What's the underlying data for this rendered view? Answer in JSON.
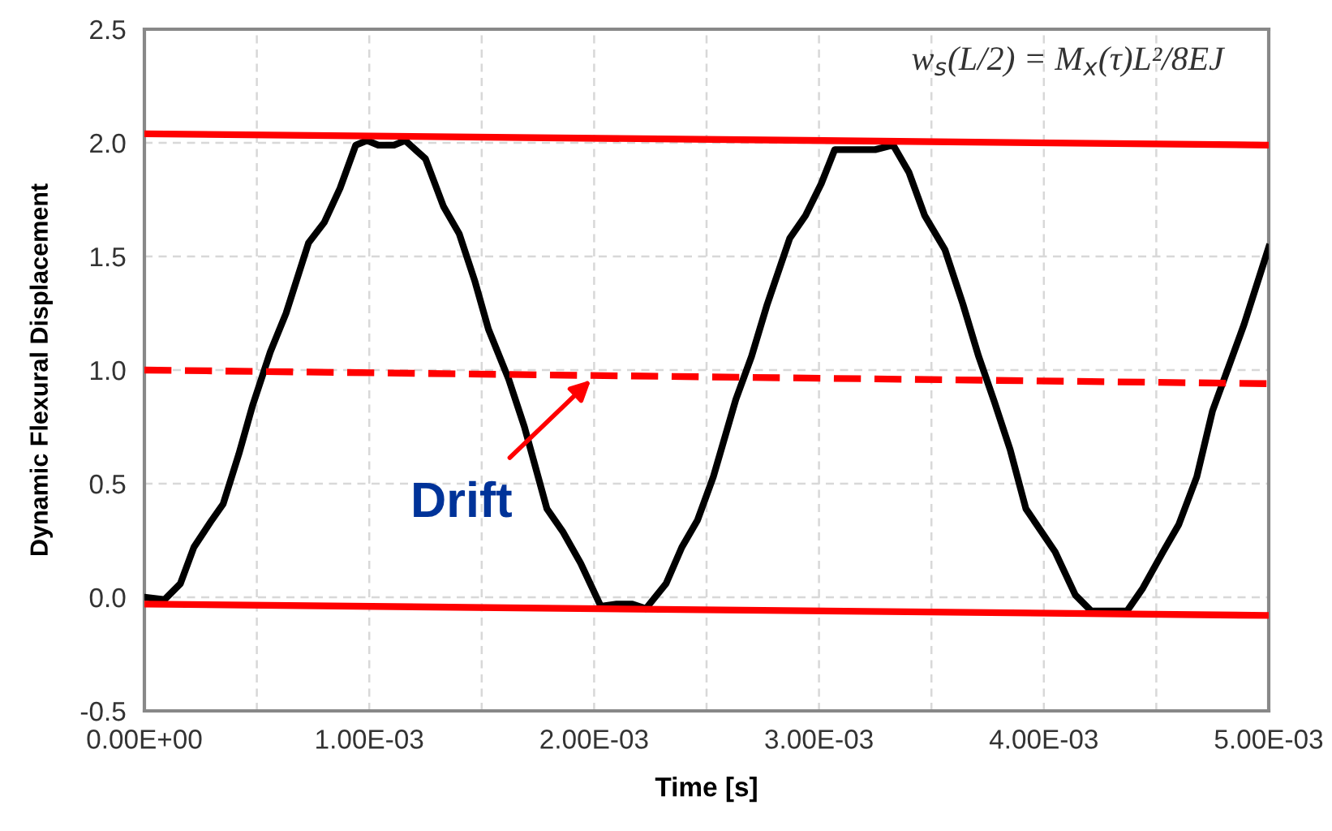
{
  "chart_data": {
    "type": "line",
    "xlabel": "Time [s]",
    "ylabel": "Dynamic Flexural Displacement",
    "xlim": [
      0,
      0.005
    ],
    "ylim": [
      -0.5,
      2.5
    ],
    "xticks": [
      {
        "value": 0,
        "label": "0.00E+00"
      },
      {
        "value": 0.0005,
        "label": null
      },
      {
        "value": 0.001,
        "label": "1.00E-03"
      },
      {
        "value": 0.0015,
        "label": null
      },
      {
        "value": 0.002,
        "label": "2.00E-03"
      },
      {
        "value": 0.0025,
        "label": null
      },
      {
        "value": 0.003,
        "label": "3.00E-03"
      },
      {
        "value": 0.0035,
        "label": null
      },
      {
        "value": 0.004,
        "label": "4.00E-03"
      },
      {
        "value": 0.0045,
        "label": null
      },
      {
        "value": 0.005,
        "label": "5.00E-03"
      }
    ],
    "yticks": [
      {
        "value": -0.5,
        "label": "-0.5"
      },
      {
        "value": 0.0,
        "label": "0.0"
      },
      {
        "value": 0.5,
        "label": "0.5"
      },
      {
        "value": 1.0,
        "label": "1.0"
      },
      {
        "value": 1.5,
        "label": "1.5"
      },
      {
        "value": 2.0,
        "label": "2.0"
      },
      {
        "value": 2.5,
        "label": "2.5"
      }
    ],
    "grid": true,
    "series": [
      {
        "color": "#000000",
        "line_style": "solid",
        "x": [
          0.0,
          9e-05,
          0.00016,
          0.00022,
          0.0003,
          0.00035,
          0.00042,
          0.00048,
          0.00056,
          0.00063,
          0.00073,
          0.0008,
          0.00087,
          0.00094,
          0.00099,
          0.00104,
          0.00111,
          0.00116,
          0.00125,
          0.00133,
          0.0014,
          0.00147,
          0.00153,
          0.00162,
          0.00169,
          0.00179,
          0.00186,
          0.00194,
          0.00203,
          0.0021,
          0.00217,
          0.00223,
          0.00232,
          0.00239,
          0.00246,
          0.00253,
          0.00263,
          0.0027,
          0.00277,
          0.00287,
          0.00294,
          0.00301,
          0.00307,
          0.00316,
          0.00325,
          0.00333,
          0.0034,
          0.00347,
          0.00356,
          0.00364,
          0.00371,
          0.00378,
          0.00385,
          0.00392,
          0.00405,
          0.00414,
          0.00421,
          0.00429,
          0.00437,
          0.00444,
          0.00453,
          0.0046,
          0.00468,
          0.00475,
          0.00482,
          0.00489,
          0.005
        ],
        "values": [
          0.0,
          -0.01,
          0.06,
          0.22,
          0.34,
          0.41,
          0.63,
          0.84,
          1.08,
          1.25,
          1.56,
          1.65,
          1.8,
          1.99,
          2.01,
          1.99,
          1.99,
          2.01,
          1.93,
          1.72,
          1.6,
          1.39,
          1.18,
          0.96,
          0.75,
          0.39,
          0.29,
          0.15,
          -0.04,
          -0.03,
          -0.03,
          -0.05,
          0.06,
          0.22,
          0.34,
          0.53,
          0.87,
          1.06,
          1.29,
          1.58,
          1.68,
          1.82,
          1.97,
          1.97,
          1.97,
          1.99,
          1.87,
          1.68,
          1.53,
          1.29,
          1.06,
          0.86,
          0.65,
          0.39,
          0.2,
          0.01,
          -0.06,
          -0.06,
          -0.06,
          0.04,
          0.2,
          0.32,
          0.53,
          0.82,
          1.01,
          1.2,
          1.54
        ]
      },
      {
        "color": "#ff0000",
        "line_style": "solid",
        "x": [
          0,
          0.005
        ],
        "values": [
          2.04,
          1.99
        ]
      },
      {
        "color": "#ff0000",
        "line_style": "dashed",
        "x": [
          0,
          0.005
        ],
        "values": [
          1.0,
          0.94
        ]
      },
      {
        "color": "#ff0000",
        "line_style": "solid",
        "x": [
          0,
          0.005
        ],
        "values": [
          -0.03,
          -0.08
        ]
      }
    ],
    "annotations": [
      {
        "text": "Drift",
        "x": 0.002,
        "y": 0.97
      },
      "w$_{s}$(L/2) = M$_{x}$(τ)L²/8EJ"
    ]
  }
}
